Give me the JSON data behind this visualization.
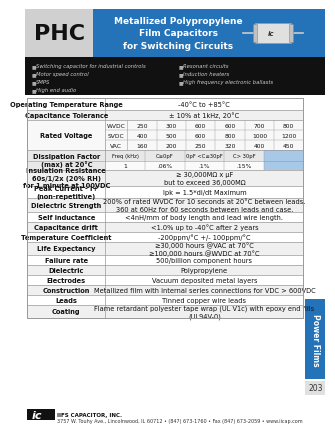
{
  "title_code": "PHC",
  "title_main": "Metallized Polypropylene\nFilm Capacitors\nfor Switching Circuits",
  "bullet_left": [
    "Switching capacitor for industrial controls",
    "Motor speed control",
    "SMPS",
    "High end audio"
  ],
  "bullet_right": [
    "Resonant circuits",
    "Induction heaters",
    "High frequency electronic ballasts"
  ],
  "voltages_wvdc": [
    "250",
    "300",
    "600",
    "600",
    "700",
    "800"
  ],
  "voltages_svdc": [
    "400",
    "500",
    "600",
    "800",
    "1000",
    "1200"
  ],
  "voltages_vac": [
    "160",
    "200",
    "250",
    "320",
    "400",
    "450"
  ],
  "df_headers": [
    "Freq (kHz)",
    "C≤0pF",
    "0pF <C≤30pF",
    "C> 30pF"
  ],
  "df_vals": [
    "1",
    ".06%",
    ".1%",
    ".15%"
  ],
  "remaining_rows": [
    [
      "Insulation Resistance\n60s/1/2x (20% RH)\nfor 1 minute at 100VDC",
      "≥ 30,000MΩ x µF\nbut to exceed 36,000MΩ",
      16
    ],
    [
      "Peak Current - I+\n(non-repetitive)",
      "Ipk = 1.5*di/dt Maximum",
      12
    ],
    [
      "Dielectric Strength",
      "200% of rated WVDC for 10 seconds at 20°C between leads.\n360 at 60Hz for 60 seconds between leads and case.",
      14
    ],
    [
      "Self inductance",
      "<4nH/mm of body length and lead wire length.",
      10
    ],
    [
      "Capacitance drift",
      "<1.0% up to -40°C after 2 years",
      10
    ],
    [
      "Temperature Coefficient",
      "-200ppm/°C +/- 100ppm/°C",
      10
    ],
    [
      "Life Expectancy",
      "≥30,000 hours @VAC at 70°C\n≥100,000 hours @WVDC at 70°C",
      13
    ],
    [
      "Failure rate",
      "500/billion component hours",
      10
    ],
    [
      "Dielectric",
      "Polypropylene",
      10
    ],
    [
      "Electrodes",
      "Vacuum deposited metal layers",
      10
    ],
    [
      "Construction",
      "Metallized film with internal series connections for VDC > 600VDC",
      10
    ],
    [
      "Leads",
      "Tinned copper wire leads",
      10
    ],
    [
      "Coating",
      "Flame retardant polyester tape wrap (UL V1c) with epoxy end fills\n(UL94V-0)",
      13
    ]
  ],
  "footer_text": "3757 W. Touhy Ave., Lincolnwood, IL 60712 • (847) 673-1760 • Fax (847) 673-2059 • www.iicap.com",
  "side_label": "Power Films",
  "page_num": "203",
  "bg_color": "#ffffff",
  "header_blue": "#2472b8",
  "header_gray": "#d0d0d0",
  "header_dark": "#111111",
  "blue_cell": "#a8c8e8",
  "table_shade": "#f0f0f0",
  "table_shade2": "#e8e8e8",
  "border_color": "#999999",
  "text_dark": "#111111"
}
